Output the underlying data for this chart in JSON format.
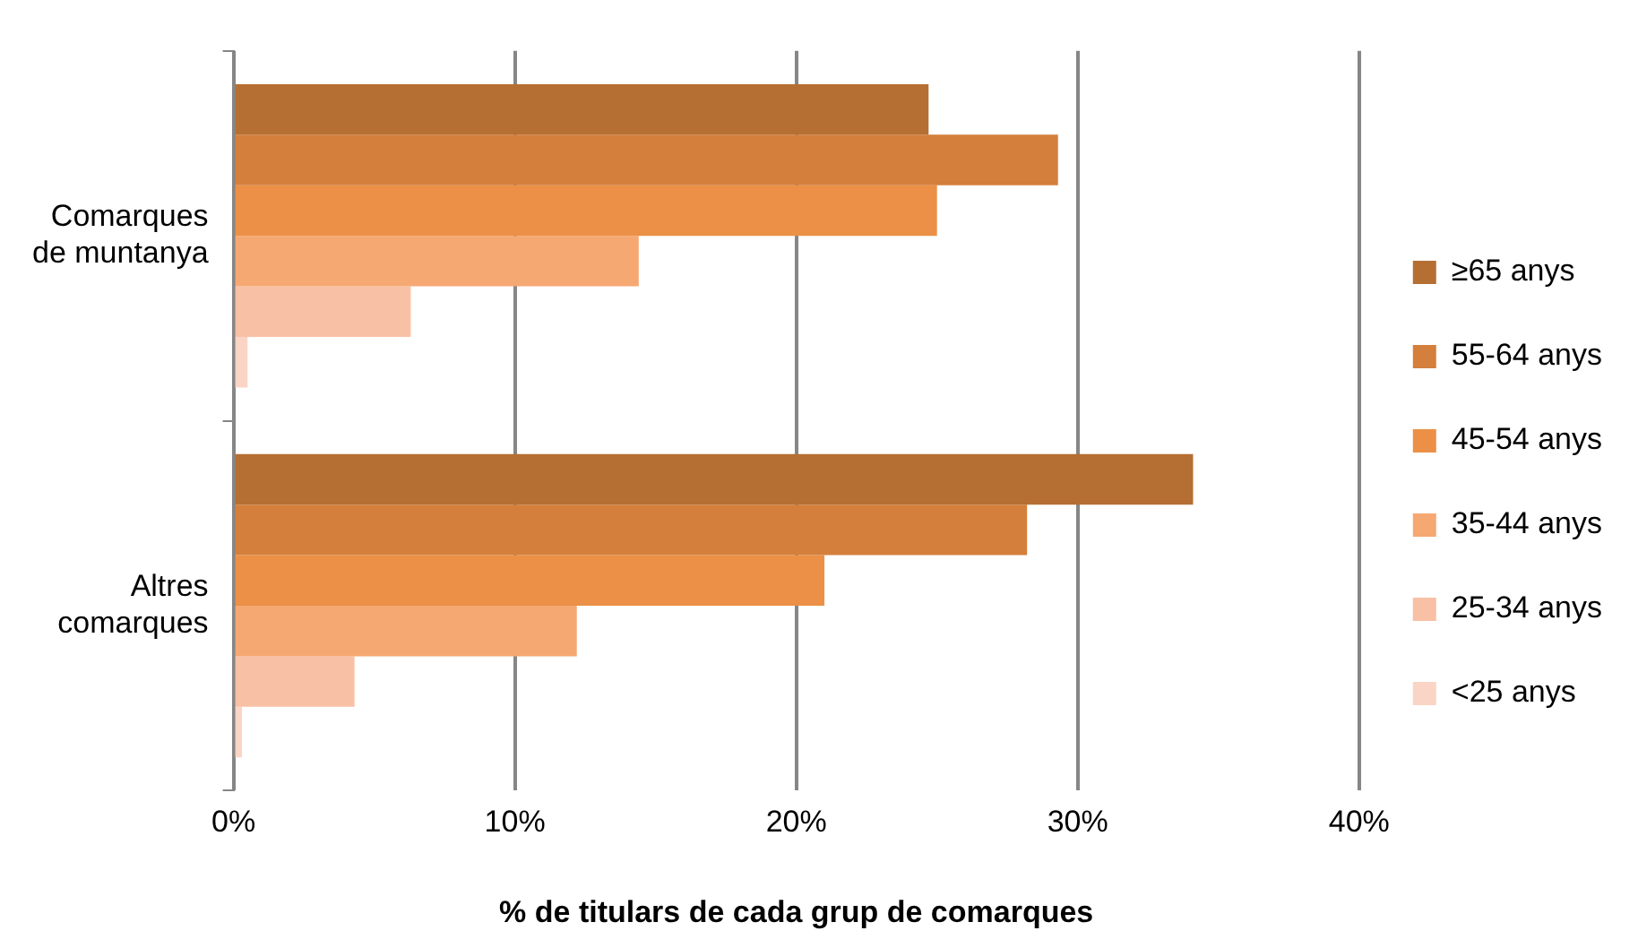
{
  "chart_data": {
    "type": "bar",
    "orientation": "horizontal",
    "xlabel": "% de titulars de cada grup de comarques",
    "categories": [
      "Comarques de muntanya",
      "Altres comarques"
    ],
    "series": [
      {
        "name": "≥65 anys",
        "color": "#b56f33",
        "values": [
          24.7,
          34.1
        ]
      },
      {
        "name": "55-64 anys",
        "color": "#d47f3b",
        "values": [
          29.3,
          28.2
        ]
      },
      {
        "name": "45-54 anys",
        "color": "#eb9046",
        "values": [
          25.0,
          21.0
        ]
      },
      {
        "name": "35-44 anys",
        "color": "#f6a873",
        "values": [
          14.4,
          12.2
        ]
      },
      {
        "name": "25-34 anys",
        "color": "#f8c0a4",
        "values": [
          6.3,
          4.3
        ]
      },
      {
        "name": "<25 anys",
        "color": "#fad5c5",
        "values": [
          0.5,
          0.3
        ]
      }
    ],
    "xlim": [
      0,
      40
    ],
    "xticks": [
      {
        "value": 0,
        "label": "0%"
      },
      {
        "value": 10,
        "label": "10%"
      },
      {
        "value": 20,
        "label": "20%"
      },
      {
        "value": 30,
        "label": "30%"
      },
      {
        "value": 40,
        "label": "40%"
      }
    ],
    "grid": "x",
    "legend": "right"
  }
}
